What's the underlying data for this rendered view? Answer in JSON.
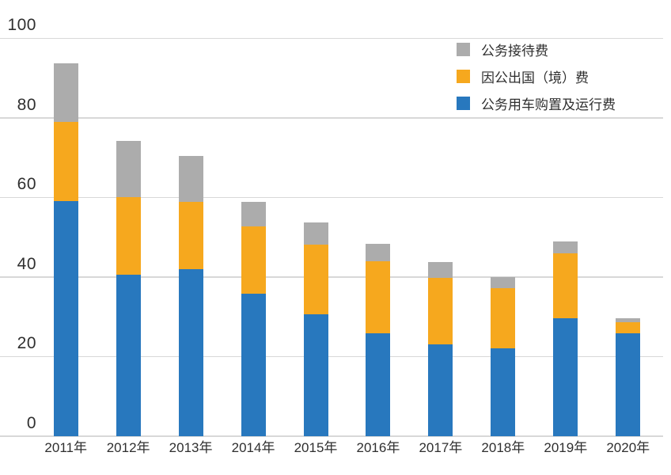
{
  "chart_data": {
    "type": "bar",
    "stacked": true,
    "title": "",
    "xlabel": "",
    "ylabel": "",
    "categories": [
      "2011年",
      "2012年",
      "2013年",
      "2014年",
      "2015年",
      "2016年",
      "2017年",
      "2018年",
      "2019年",
      "2020年"
    ],
    "series": [
      {
        "name": "公务用车购置及运行费",
        "color": "#2878BE",
        "values": [
          59.1,
          40.6,
          42.0,
          35.9,
          30.7,
          25.8,
          23.1,
          22.1,
          29.7,
          25.8
        ]
      },
      {
        "name": "因公出国（境）费",
        "color": "#F6A81E",
        "values": [
          19.8,
          19.5,
          16.8,
          16.8,
          17.5,
          18.2,
          16.7,
          15.1,
          16.2,
          2.9
        ]
      },
      {
        "name": "公务接待费",
        "color": "#ACACAC",
        "values": [
          14.7,
          14.1,
          11.7,
          6.1,
          5.6,
          4.3,
          3.9,
          2.7,
          3.0,
          1.0
        ]
      }
    ],
    "stack_totals": [
      93.6,
      74.2,
      70.5,
      58.8,
      53.8,
      48.3,
      43.7,
      39.9,
      48.9,
      29.7
    ],
    "ylim": [
      0,
      100
    ],
    "yticks": [
      0,
      20,
      40,
      60,
      80,
      100
    ],
    "grid": true,
    "legend_position": "top-right"
  },
  "legend": {
    "items": [
      {
        "label": "公务接待费",
        "color": "#ACACAC"
      },
      {
        "label": "因公出国（境）费",
        "color": "#F6A81E"
      },
      {
        "label": "公务用车购置及运行费",
        "color": "#2878BE"
      }
    ]
  },
  "colors": {
    "background": "#FFFFFF",
    "gridline": "#D8D8D8",
    "text": "#2F2F2F",
    "bar_blue": "#2878BE",
    "bar_orange": "#F6A81E",
    "bar_gray": "#ACACAC"
  }
}
